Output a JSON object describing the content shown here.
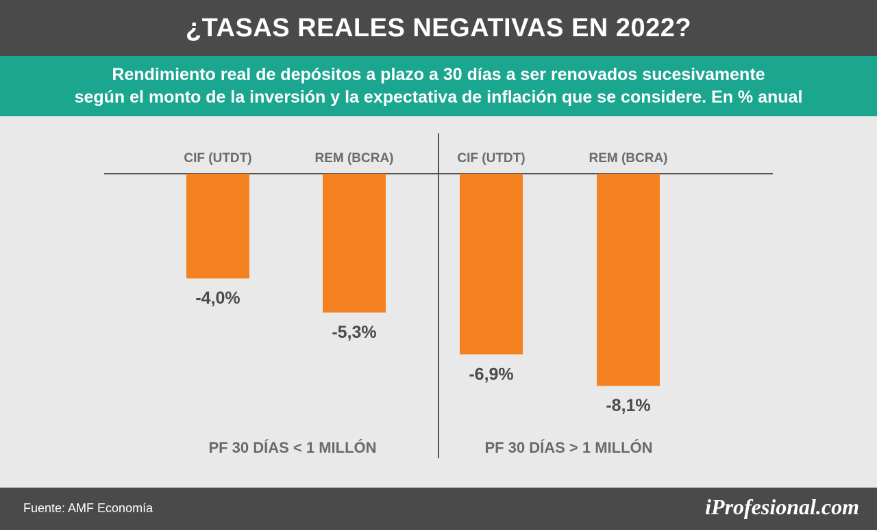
{
  "header": {
    "title": "¿TASAS REALES NEGATIVAS EN 2022?"
  },
  "subheader": {
    "subtitle_line1": "Rendimiento real de depósitos a plazo a 30 días a ser renovados sucesivamente",
    "subtitle_line2": "según el monto de la inversión y la expectativa de inflación que se considere. En % anual"
  },
  "footer": {
    "source": "Fuente: AMF Economía",
    "brand": "iProfesional.com"
  },
  "colors": {
    "header_bg": "#4a4a4a",
    "subheader_bg": "#1aa68f",
    "chart_bg": "#e9e9e9",
    "bar": "#f58220",
    "text": "#4a4a4a"
  },
  "chart_data": {
    "type": "bar",
    "title": "¿TASAS REALES NEGATIVAS EN 2022?",
    "ylim": [
      -9,
      0
    ],
    "grid": false,
    "groups": [
      {
        "label": "PF 30 DÍAS < 1 MILLÓN",
        "categories": [
          "CIF (UTDT)",
          "REM (BCRA)"
        ],
        "values": [
          -4.0,
          -5.3
        ],
        "value_labels": [
          "-4,0%",
          "-5,3%"
        ]
      },
      {
        "label": "PF 30 DÍAS > 1 MILLÓN",
        "categories": [
          "CIF (UTDT)",
          "REM (BCRA)"
        ],
        "values": [
          -6.9,
          -8.1
        ],
        "value_labels": [
          "-6,9%",
          "-8,1%"
        ]
      }
    ]
  }
}
